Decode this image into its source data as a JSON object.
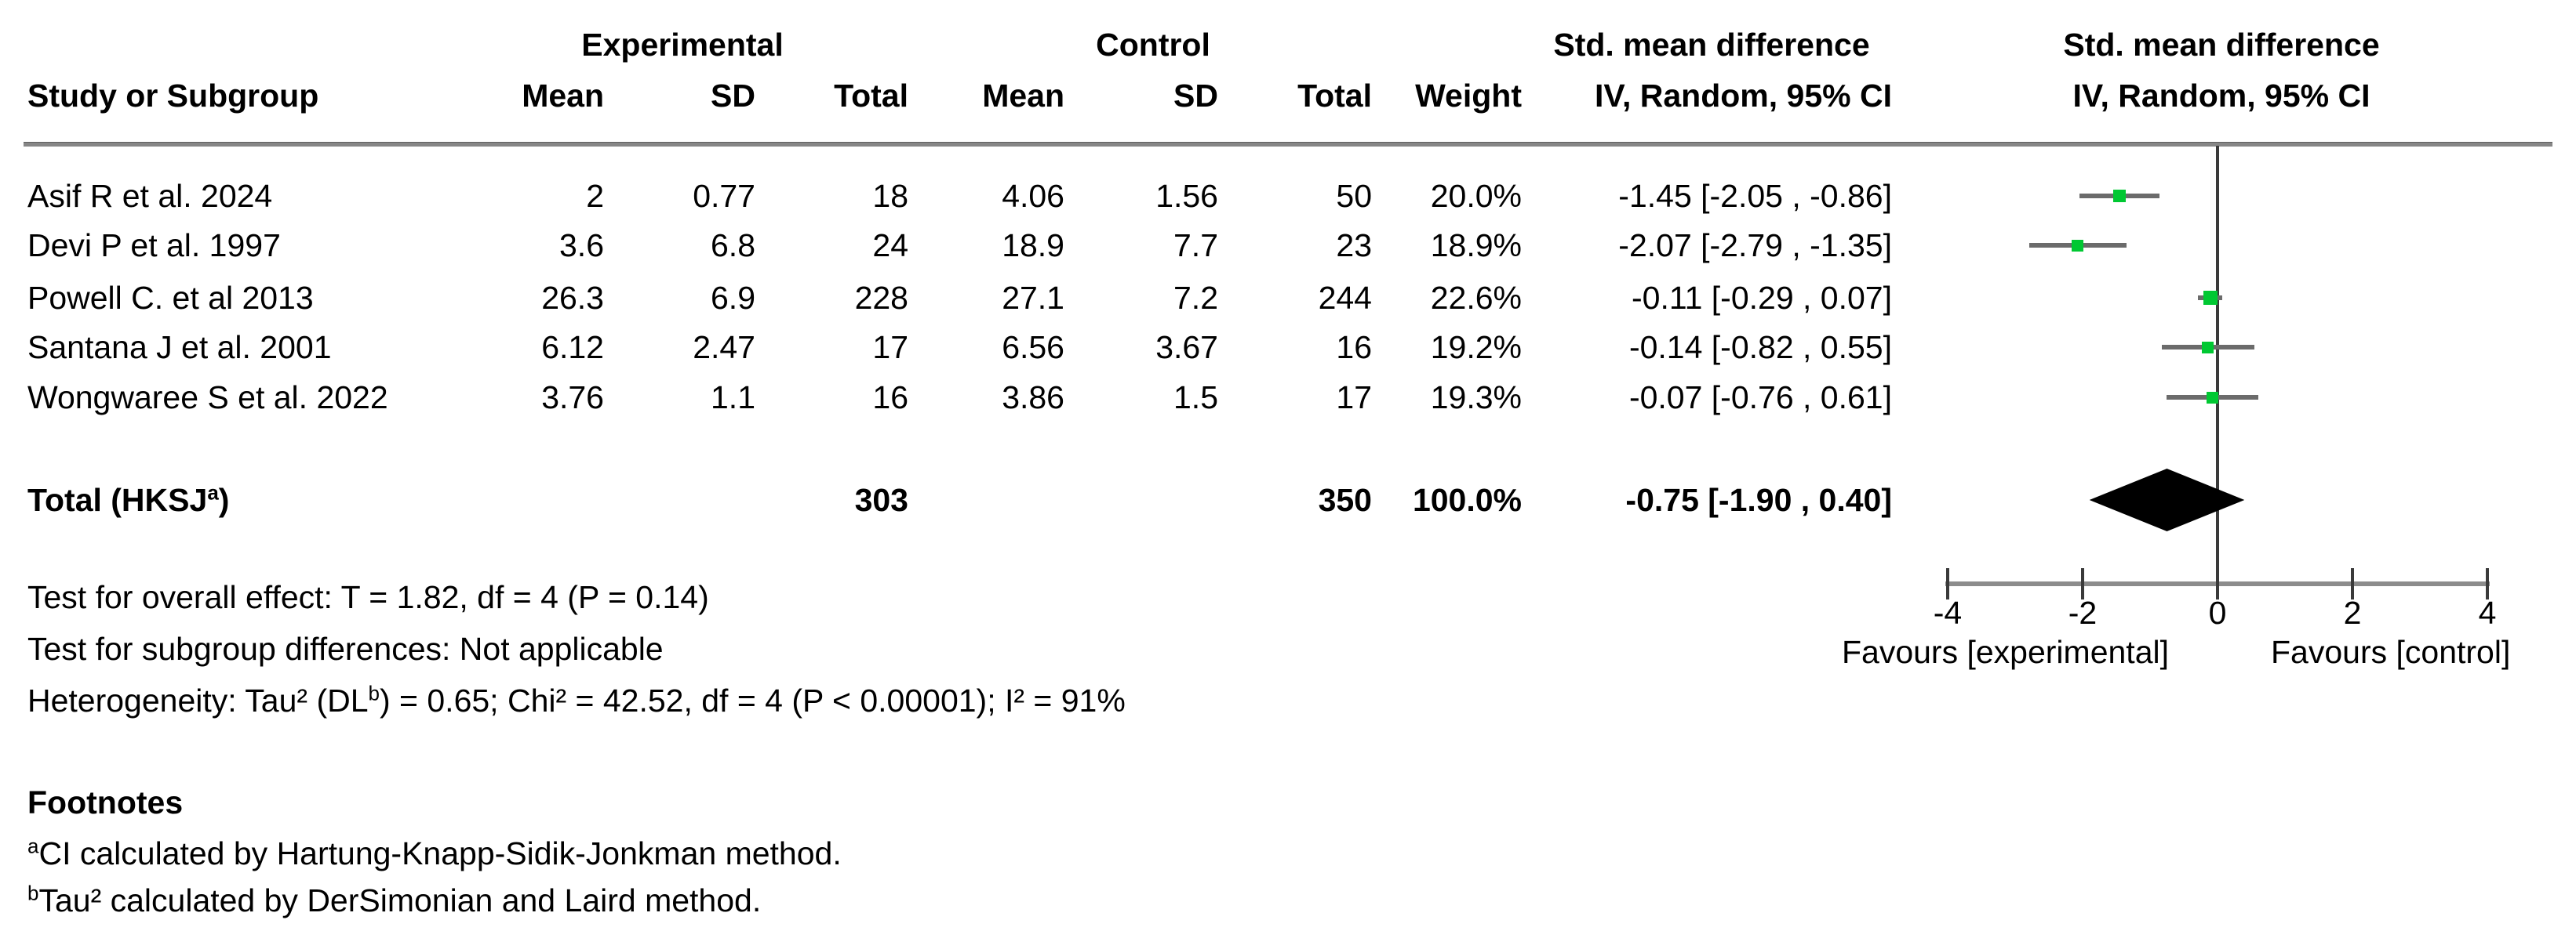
{
  "header": {
    "group_experimental": "Experimental",
    "group_control": "Control",
    "group_smd": "Std. mean difference",
    "col_study": "Study or Subgroup",
    "col_mean": "Mean",
    "col_sd": "SD",
    "col_total": "Total",
    "col_weight": "Weight",
    "col_ci": "IV, Random, 95% CI"
  },
  "table": {
    "rows": [
      {
        "study": "Asif R et al. 2024",
        "mean_e": "2",
        "sd_e": "0.77",
        "total_e": "18",
        "mean_c": "4.06",
        "sd_c": "1.56",
        "total_c": "50",
        "weight": "20.0%",
        "smd_ci": "-1.45 [-2.05 , -0.86]"
      },
      {
        "study": "Devi P et al. 1997",
        "mean_e": "3.6",
        "sd_e": "6.8",
        "total_e": "24",
        "mean_c": "18.9",
        "sd_c": "7.7",
        "total_c": "23",
        "weight": "18.9%",
        "smd_ci": "-2.07 [-2.79 , -1.35]"
      },
      {
        "study": "Powell C. et al 2013",
        "mean_e": "26.3",
        "sd_e": "6.9",
        "total_e": "228",
        "mean_c": "27.1",
        "sd_c": "7.2",
        "total_c": "244",
        "weight": "22.6%",
        "smd_ci": "-0.11 [-0.29 , 0.07]"
      },
      {
        "study": "Santana J et al. 2001",
        "mean_e": "6.12",
        "sd_e": "2.47",
        "total_e": "17",
        "mean_c": "6.56",
        "sd_c": "3.67",
        "total_c": "16",
        "weight": "19.2%",
        "smd_ci": "-0.14 [-0.82 , 0.55]"
      },
      {
        "study": "Wongwaree S et al. 2022",
        "mean_e": "3.76",
        "sd_e": "1.1",
        "total_e": "16",
        "mean_c": "3.86",
        "sd_c": "1.5",
        "total_c": "17",
        "weight": "19.3%",
        "smd_ci": "-0.07 [-0.76 , 0.61]"
      }
    ],
    "total": {
      "label_prefix": "Total (HKSJ",
      "label_sup": "a",
      "label_suffix": ")",
      "total_e": "303",
      "total_c": "350",
      "weight": "100.0%",
      "smd_ci": "-0.75 [-1.90 , 0.40]"
    }
  },
  "stats": {
    "overall_effect": "Test for overall effect: T = 1.82, df = 4 (P = 0.14)",
    "subgroup": "Test for subgroup differences: Not applicable",
    "heterogeneity_prefix": "Heterogeneity: Tau² (DL",
    "heterogeneity_sup": "b",
    "heterogeneity_suffix": ") = 0.65; Chi² = 42.52, df = 4 (P < 0.00001); I² = 91%"
  },
  "footnotes": {
    "heading": "Footnotes",
    "a_sup": "a",
    "a_text": "CI calculated by Hartung-Knapp-Sidik-Jonkman method.",
    "b_sup": "b",
    "b_text": "Tau² calculated by DerSimonian and Laird method."
  },
  "chart_data": {
    "type": "forest",
    "effect_measure": "Std. mean difference",
    "method": "IV, Random, 95% CI",
    "xlim": [
      -4,
      4
    ],
    "x_ticks": [
      -4,
      -2,
      0,
      2,
      4
    ],
    "grid": false,
    "favours_left": "Favours [experimental]",
    "favours_right": "Favours [control]",
    "marker_color": "#00c832",
    "studies": [
      {
        "name": "Asif R et al. 2024",
        "estimate": -1.45,
        "ci_lower": -2.05,
        "ci_upper": -0.86,
        "weight_pct": 20.0
      },
      {
        "name": "Devi P et al. 1997",
        "estimate": -2.07,
        "ci_lower": -2.79,
        "ci_upper": -1.35,
        "weight_pct": 18.9
      },
      {
        "name": "Powell C. et al 2013",
        "estimate": -0.11,
        "ci_lower": -0.29,
        "ci_upper": 0.07,
        "weight_pct": 22.6
      },
      {
        "name": "Santana J et al. 2001",
        "estimate": -0.14,
        "ci_lower": -0.82,
        "ci_upper": 0.55,
        "weight_pct": 19.2
      },
      {
        "name": "Wongwaree S et al. 2022",
        "estimate": -0.07,
        "ci_lower": -0.76,
        "ci_upper": 0.61,
        "weight_pct": 19.3
      }
    ],
    "total": {
      "name": "Total (HKSJ a)",
      "estimate": -0.75,
      "ci_lower": -1.9,
      "ci_upper": 0.4,
      "weight_pct": 100.0
    }
  }
}
